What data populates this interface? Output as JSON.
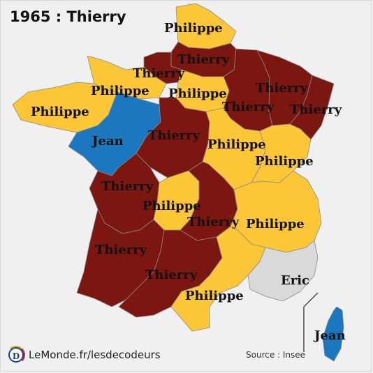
{
  "title": "1965 : Thierry",
  "colors": {
    "Thierry": "#7b1710",
    "Philippe": "#fcc637",
    "Jean": "#1a77c0",
    "Eric": "#d9d9d9",
    "border": "#8a8a8a",
    "background": "#f0f0f0"
  },
  "icons": {
    "logo": "lemonde-decodeurs-logo"
  },
  "logo_letter": "D",
  "brand": "LeMonde.fr/lesdecodeurs",
  "source": "Source : Insee",
  "legend_regions": [
    {
      "id": "nord",
      "name": "Philippe"
    },
    {
      "id": "picardie",
      "name": "Thierry"
    },
    {
      "id": "haute-normandie",
      "name": "Thierry"
    },
    {
      "id": "champagne",
      "name": "Thierry"
    },
    {
      "id": "lorraine",
      "name": "Thierry"
    },
    {
      "id": "alsace",
      "name": "Thierry"
    },
    {
      "id": "basse-normandie",
      "name": "Philippe"
    },
    {
      "id": "bretagne",
      "name": "Philippe"
    },
    {
      "id": "idf",
      "name": "Philippe"
    },
    {
      "id": "pays-de-la-loire",
      "name": "Jean"
    },
    {
      "id": "centre",
      "name": "Thierry"
    },
    {
      "id": "bourgogne",
      "name": "Philippe"
    },
    {
      "id": "franche-comte",
      "name": "Philippe"
    },
    {
      "id": "poitou-charentes",
      "name": "Thierry"
    },
    {
      "id": "limousin",
      "name": "Philippe"
    },
    {
      "id": "auvergne",
      "name": "Thierry"
    },
    {
      "id": "rhone-alpes",
      "name": "Philippe"
    },
    {
      "id": "aquitaine",
      "name": "Thierry"
    },
    {
      "id": "midi-pyrenees",
      "name": "Thierry"
    },
    {
      "id": "languedoc",
      "name": "Philippe"
    },
    {
      "id": "paca",
      "name": "Eric"
    },
    {
      "id": "corse",
      "name": "Jean"
    }
  ]
}
